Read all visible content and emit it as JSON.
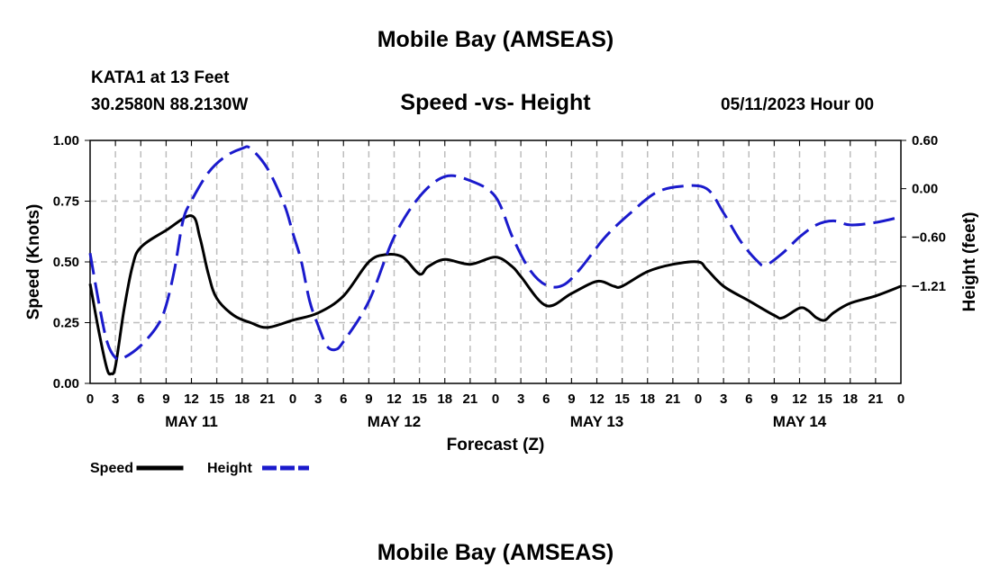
{
  "header": {
    "title": "Mobile Bay (AMSEAS)",
    "station": "KATA1 at 13 Feet",
    "coords": "30.2580N  88.2130W",
    "subtitle": "Speed -vs- Height",
    "datetime": "05/11/2023 Hour 00"
  },
  "footer": {
    "title": "Mobile Bay (AMSEAS)"
  },
  "colors": {
    "speed": "#000000",
    "height": "#1a1acc",
    "grid": "#bdbdbd"
  },
  "chart_data": {
    "type": "line",
    "title": "Speed -vs- Height",
    "xlabel": "Forecast (Z)",
    "ylabel": "Speed (Knots)",
    "y2label": "Height (feet)",
    "x_range_hours": [
      0,
      96
    ],
    "x_ticks": [
      "0",
      "3",
      "6",
      "9",
      "12",
      "15",
      "18",
      "21",
      "0",
      "3",
      "6",
      "9",
      "12",
      "15",
      "18",
      "21",
      "0",
      "3",
      "6",
      "9",
      "12",
      "15",
      "18",
      "21",
      "0",
      "3",
      "6",
      "9",
      "12",
      "15",
      "18",
      "21",
      "0"
    ],
    "day_labels": [
      {
        "hour": 12,
        "label": "MAY 11"
      },
      {
        "hour": 36,
        "label": "MAY 12"
      },
      {
        "hour": 60,
        "label": "MAY 13"
      },
      {
        "hour": 84,
        "label": "MAY 14"
      }
    ],
    "ylim": [
      0,
      1.0
    ],
    "y_ticks": [
      {
        "value": 0.0,
        "label": "0.00"
      },
      {
        "value": 0.25,
        "label": "0.25"
      },
      {
        "value": 0.5,
        "label": "0.50"
      },
      {
        "value": 0.75,
        "label": "0.75"
      },
      {
        "value": 1.0,
        "label": "1.00"
      }
    ],
    "y2lim": [
      -2.42,
      0.6
    ],
    "y2_ticks": [
      {
        "value": 0.6,
        "label": "0.60"
      },
      {
        "value": 0.0,
        "label": "0.00"
      },
      {
        "value": -0.6,
        "label": "−0.60"
      },
      {
        "value": -1.21,
        "label": "−1.21"
      }
    ],
    "series": [
      {
        "name": "Speed",
        "axis": "left",
        "style": "solid",
        "points": [
          [
            0,
            0.41
          ],
          [
            1,
            0.22
          ],
          [
            2,
            0.06
          ],
          [
            2.5,
            0.04
          ],
          [
            3,
            0.07
          ],
          [
            4,
            0.3
          ],
          [
            5,
            0.48
          ],
          [
            6,
            0.56
          ],
          [
            9,
            0.63
          ],
          [
            12,
            0.69
          ],
          [
            13,
            0.6
          ],
          [
            14,
            0.45
          ],
          [
            15,
            0.35
          ],
          [
            17,
            0.28
          ],
          [
            19,
            0.25
          ],
          [
            21,
            0.23
          ],
          [
            24,
            0.26
          ],
          [
            27,
            0.29
          ],
          [
            30,
            0.36
          ],
          [
            33,
            0.5
          ],
          [
            35,
            0.53
          ],
          [
            37,
            0.52
          ],
          [
            39,
            0.45
          ],
          [
            40,
            0.48
          ],
          [
            42,
            0.51
          ],
          [
            45,
            0.49
          ],
          [
            48,
            0.52
          ],
          [
            50,
            0.48
          ],
          [
            51,
            0.44
          ],
          [
            54,
            0.32
          ],
          [
            57,
            0.37
          ],
          [
            60,
            0.42
          ],
          [
            62,
            0.4
          ],
          [
            63,
            0.4
          ],
          [
            66,
            0.46
          ],
          [
            69,
            0.49
          ],
          [
            72,
            0.5
          ],
          [
            73,
            0.47
          ],
          [
            75,
            0.4
          ],
          [
            78,
            0.34
          ],
          [
            81,
            0.28
          ],
          [
            82,
            0.27
          ],
          [
            84,
            0.31
          ],
          [
            85,
            0.3
          ],
          [
            86,
            0.27
          ],
          [
            87,
            0.26
          ],
          [
            88,
            0.29
          ],
          [
            90,
            0.33
          ],
          [
            93,
            0.36
          ],
          [
            96,
            0.4
          ]
        ]
      },
      {
        "name": "Height",
        "axis": "right",
        "style": "dashed",
        "points": [
          [
            0,
            -0.8
          ],
          [
            1,
            -1.4
          ],
          [
            2,
            -1.9
          ],
          [
            3,
            -2.1
          ],
          [
            4,
            -2.1
          ],
          [
            6,
            -1.95
          ],
          [
            8,
            -1.7
          ],
          [
            9,
            -1.45
          ],
          [
            10,
            -1.0
          ],
          [
            11,
            -0.4
          ],
          [
            12,
            -0.15
          ],
          [
            14,
            0.2
          ],
          [
            16,
            0.4
          ],
          [
            18,
            0.5
          ],
          [
            19,
            0.5
          ],
          [
            21,
            0.25
          ],
          [
            23,
            -0.2
          ],
          [
            24,
            -0.55
          ],
          [
            25,
            -0.9
          ],
          [
            26,
            -1.4
          ],
          [
            27,
            -1.7
          ],
          [
            28,
            -1.95
          ],
          [
            29,
            -2.0
          ],
          [
            30,
            -1.9
          ],
          [
            33,
            -1.4
          ],
          [
            36,
            -0.6
          ],
          [
            39,
            -0.1
          ],
          [
            42,
            0.15
          ],
          [
            45,
            0.1
          ],
          [
            48,
            -0.1
          ],
          [
            50,
            -0.6
          ],
          [
            52,
            -1.0
          ],
          [
            54,
            -1.2
          ],
          [
            56,
            -1.2
          ],
          [
            58,
            -1.0
          ],
          [
            61,
            -0.6
          ],
          [
            64,
            -0.3
          ],
          [
            67,
            -0.05
          ],
          [
            70,
            0.03
          ],
          [
            73,
            0.0
          ],
          [
            75,
            -0.3
          ],
          [
            77,
            -0.65
          ],
          [
            79,
            -0.9
          ],
          [
            80,
            -0.95
          ],
          [
            82,
            -0.8
          ],
          [
            84,
            -0.6
          ],
          [
            86,
            -0.45
          ],
          [
            88,
            -0.4
          ],
          [
            90,
            -0.45
          ],
          [
            93,
            -0.42
          ],
          [
            96,
            -0.35
          ]
        ]
      }
    ],
    "legend": [
      {
        "name": "Speed",
        "color": "#000000",
        "style": "solid"
      },
      {
        "name": "Height",
        "color": "#1a1acc",
        "style": "dashed"
      }
    ],
    "legend_position": "bottom-left",
    "grid": true
  }
}
